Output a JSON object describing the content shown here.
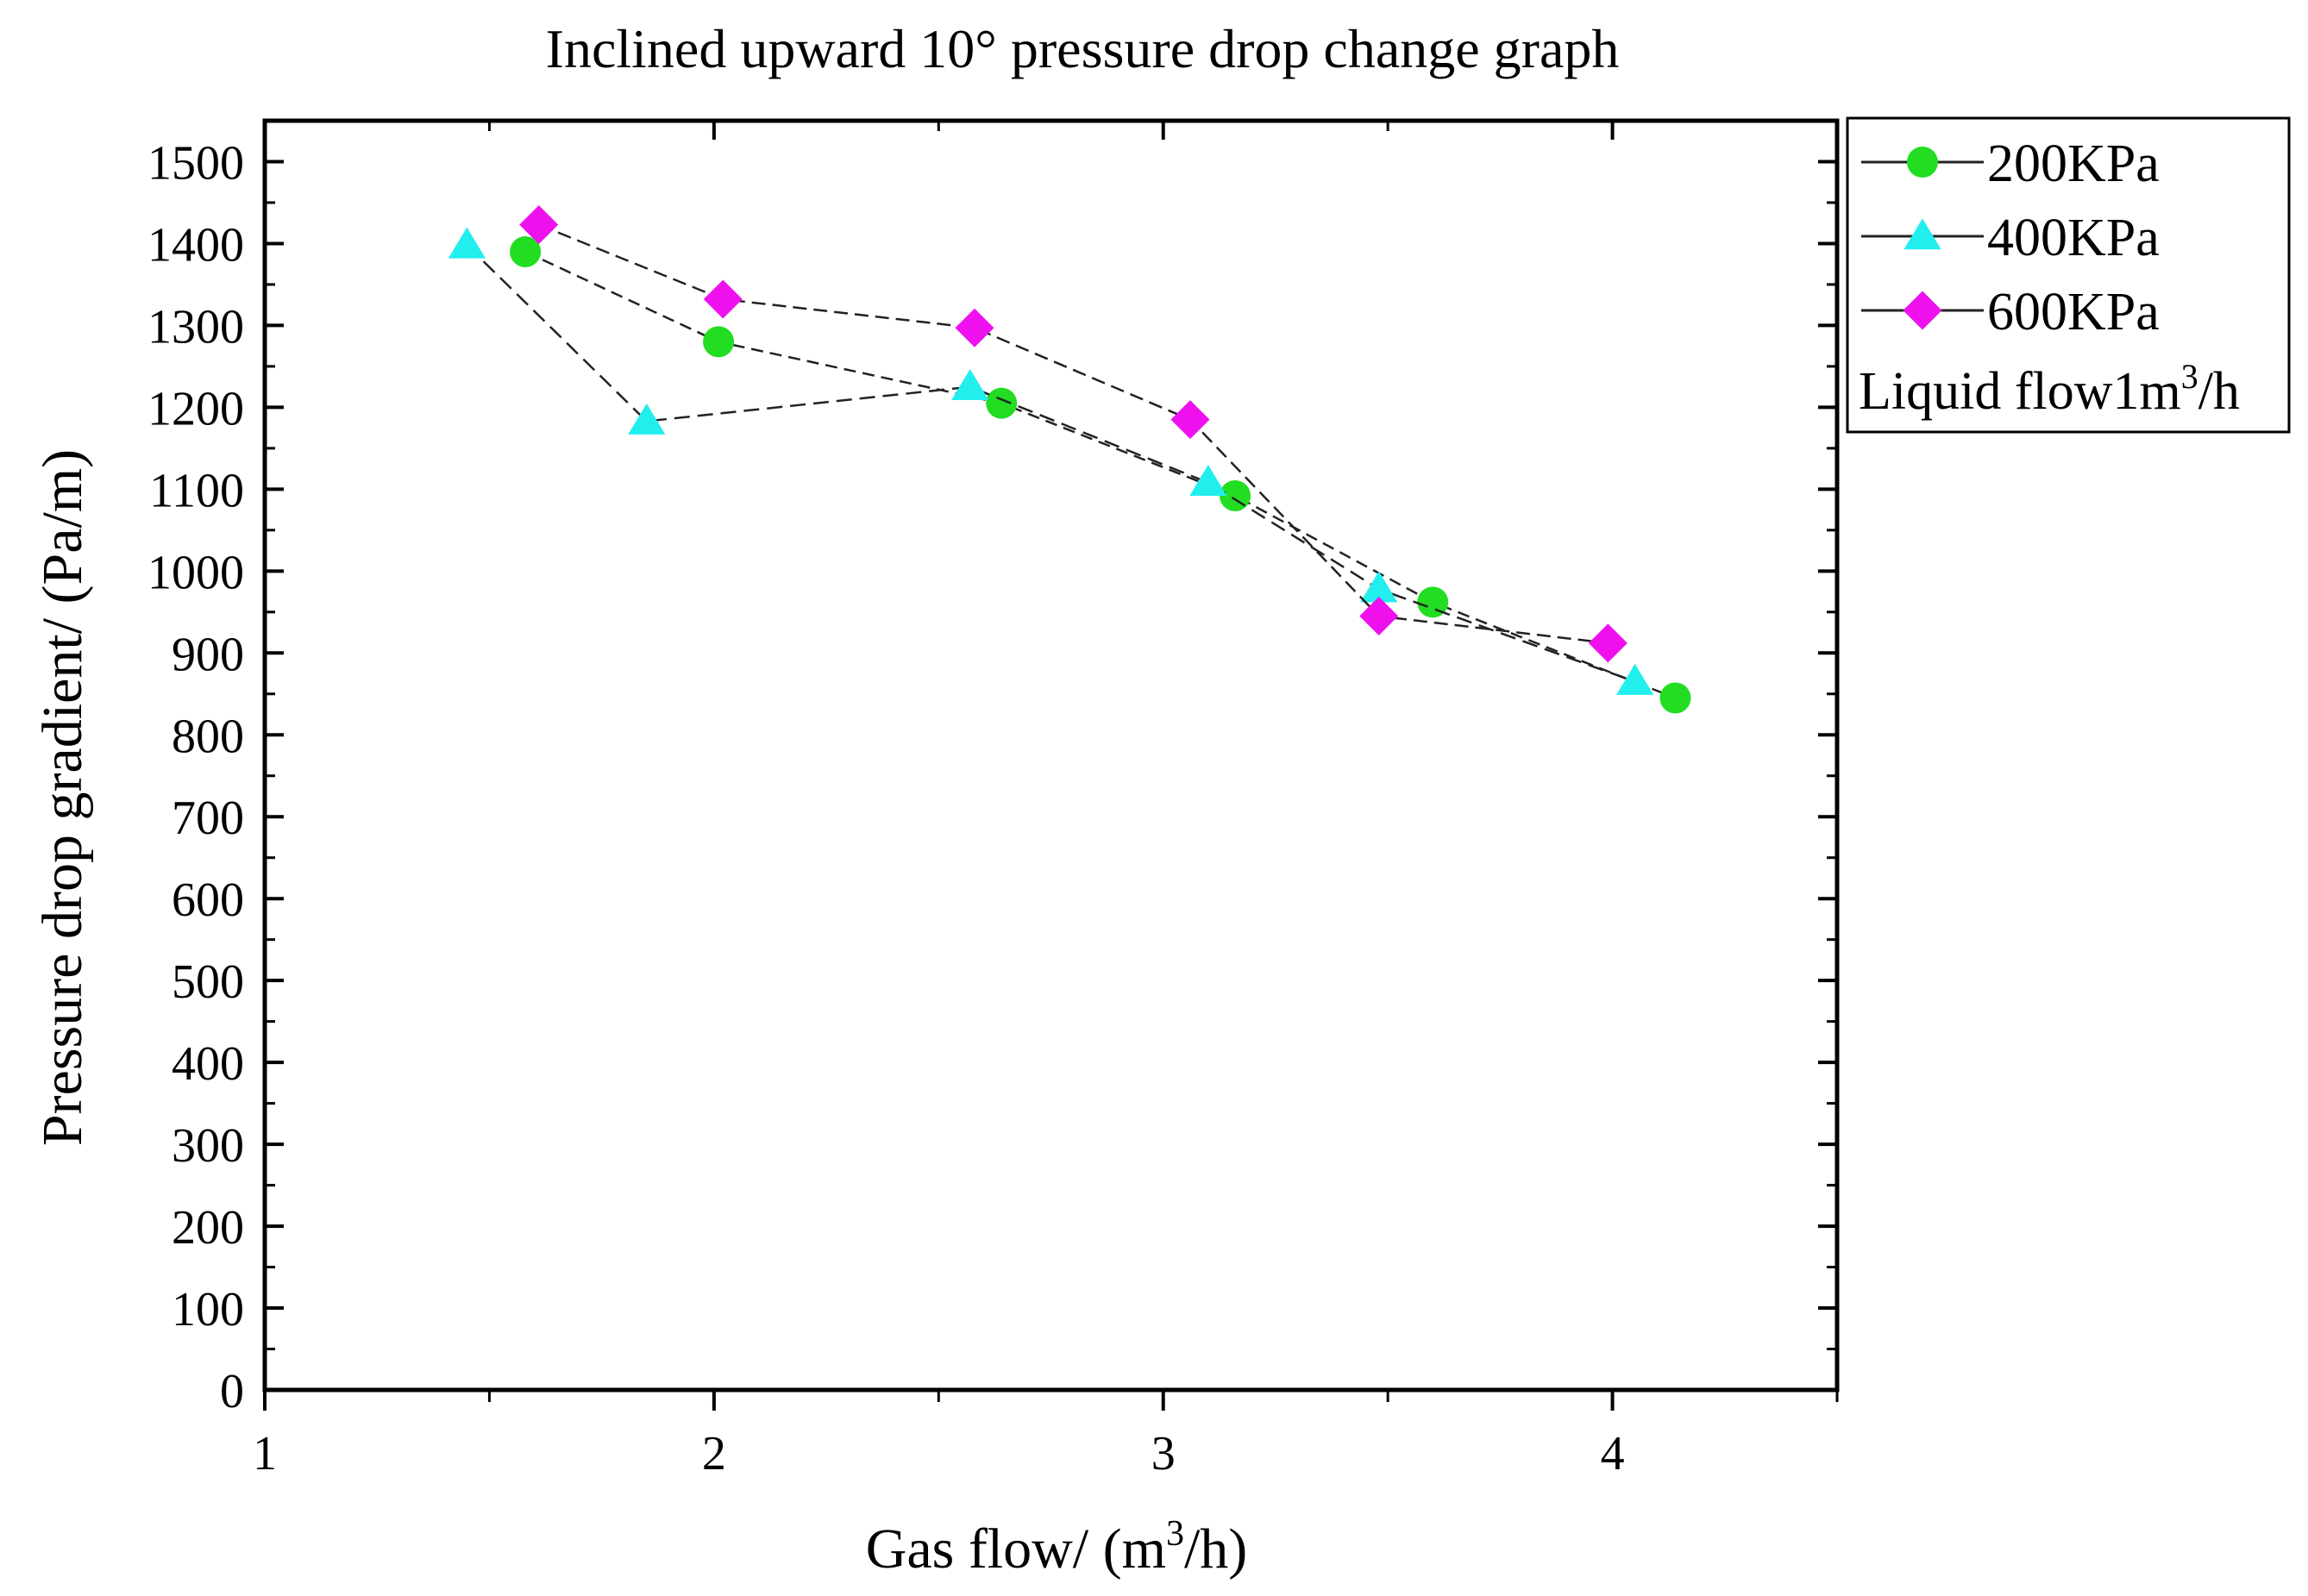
{
  "chart_data": {
    "type": "line",
    "title": "Inclined upward 10° pressure drop change graph",
    "xlabel_prefix": "Gas flow/ (m",
    "xlabel_sup": "3",
    "xlabel_suffix": "/h)",
    "ylabel": "Pressure drop gradient/ (Pa/m)",
    "xlim": [
      1,
      4.5
    ],
    "ylim": [
      0,
      1550
    ],
    "x_ticks": [
      1,
      2,
      3,
      4
    ],
    "x_tick_labels": [
      "1",
      "2",
      "3",
      "4"
    ],
    "y_ticks": [
      0,
      100,
      200,
      300,
      400,
      500,
      600,
      700,
      800,
      900,
      1000,
      1100,
      1200,
      1300,
      1400,
      1500
    ],
    "y_tick_labels": [
      "0",
      "100",
      "200",
      "300",
      "400",
      "500",
      "600",
      "700",
      "800",
      "900",
      "1000",
      "1100",
      "1200",
      "1300",
      "1400",
      "1500"
    ],
    "legend_note_prefix": "Liquid flow1m",
    "legend_note_sup": "3",
    "legend_note_suffix": "/h",
    "legend_position": "outside-top-right",
    "series": [
      {
        "name": "200KPa",
        "marker": "circle",
        "color": "#22dd22",
        "x": [
          1.58,
          2.01,
          2.64,
          3.16,
          3.6,
          4.14
        ],
        "values": [
          1390,
          1280,
          1205,
          1092,
          962,
          845
        ]
      },
      {
        "name": "400KPa",
        "marker": "triangle",
        "color": "#22eeee",
        "x": [
          1.45,
          1.85,
          2.57,
          3.1,
          3.48,
          4.05
        ],
        "values": [
          1398,
          1183,
          1225,
          1108,
          978,
          865
        ]
      },
      {
        "name": "600KPa",
        "marker": "diamond",
        "color": "#ee11ee",
        "x": [
          1.61,
          2.02,
          2.58,
          3.06,
          3.48,
          3.99
        ],
        "values": [
          1423,
          1332,
          1297,
          1185,
          945,
          912
        ]
      }
    ]
  }
}
